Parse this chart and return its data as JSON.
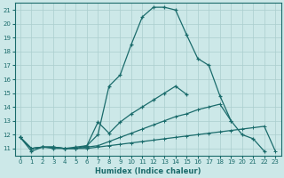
{
  "xlabel": "Humidex (Indice chaleur)",
  "background_color": "#cce8e8",
  "grid_color": "#aacece",
  "line_color": "#1a6b6b",
  "xlim": [
    -0.5,
    23.5
  ],
  "ylim": [
    10.5,
    21.5
  ],
  "yticks": [
    11,
    12,
    13,
    14,
    15,
    16,
    17,
    18,
    19,
    20,
    21
  ],
  "xticks": [
    0,
    1,
    2,
    3,
    4,
    5,
    6,
    7,
    8,
    9,
    10,
    11,
    12,
    13,
    14,
    15,
    16,
    17,
    18,
    19,
    20,
    21,
    22,
    23
  ],
  "line1_x": [
    0,
    1,
    2,
    3,
    4,
    5,
    6,
    7,
    8,
    9,
    10,
    11,
    12,
    13,
    14,
    15,
    16,
    17,
    18,
    19,
    20,
    21,
    22
  ],
  "line1_y": [
    11.8,
    10.8,
    11.1,
    11.0,
    11.0,
    11.1,
    11.2,
    12.0,
    15.5,
    16.3,
    18.5,
    20.5,
    21.2,
    21.2,
    21.0,
    19.2,
    17.5,
    17.0,
    14.8,
    13.0,
    12.0,
    11.7,
    10.8
  ],
  "line2_x": [
    0,
    1,
    2,
    3,
    4,
    5,
    6,
    7,
    8,
    9,
    10,
    11,
    12,
    13,
    14,
    15
  ],
  "line2_y": [
    11.8,
    11.0,
    11.1,
    11.1,
    11.0,
    11.0,
    11.2,
    12.9,
    12.1,
    12.9,
    13.5,
    14.0,
    14.5,
    15.0,
    15.5,
    14.9
  ],
  "line3_x": [
    0,
    1,
    2,
    3,
    4,
    5,
    6,
    7,
    8,
    9,
    10,
    11,
    12,
    13,
    14,
    15,
    16,
    17,
    18,
    19,
    20,
    21,
    22,
    23
  ],
  "line3_y": [
    11.8,
    11.0,
    11.1,
    11.1,
    11.0,
    11.0,
    11.1,
    11.2,
    11.5,
    11.8,
    12.1,
    12.4,
    12.7,
    13.0,
    13.3,
    13.5,
    13.8,
    14.0,
    14.2,
    13.0,
    null,
    null,
    null,
    null
  ],
  "line4_x": [
    0,
    1,
    2,
    3,
    4,
    5,
    6,
    7,
    8,
    9,
    10,
    11,
    12,
    13,
    14,
    15,
    16,
    17,
    18,
    19,
    20,
    21,
    22,
    23
  ],
  "line4_y": [
    11.8,
    11.0,
    11.1,
    11.1,
    11.0,
    11.0,
    11.0,
    11.1,
    11.2,
    11.3,
    11.4,
    11.5,
    11.6,
    11.7,
    11.8,
    11.9,
    12.0,
    12.1,
    12.2,
    12.3,
    12.4,
    12.5,
    12.6,
    10.8
  ]
}
